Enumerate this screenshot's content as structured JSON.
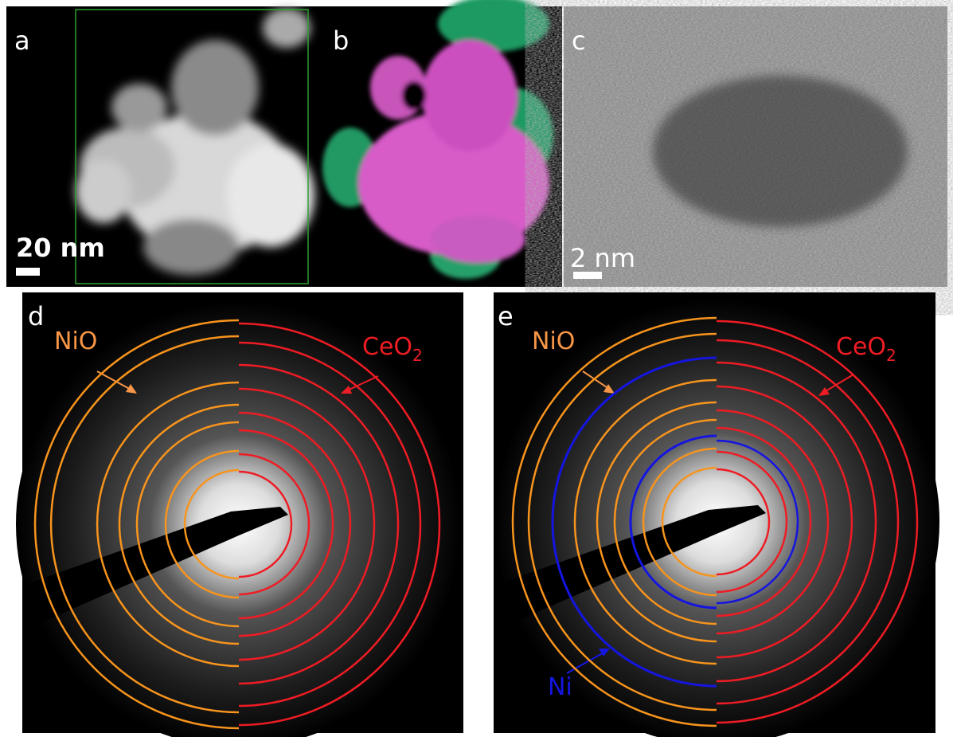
{
  "panels": [
    {
      "label": "a",
      "scale_bar": "20 nm"
    },
    {
      "label": "b"
    },
    {
      "label": "c",
      "scale_bar": "2 nm"
    },
    {
      "label": "d",
      "annotations": {
        "nio": "NiO",
        "ceo2": {
          "base": "CeO",
          "subscript": "2"
        }
      }
    },
    {
      "label": "e",
      "annotations": {
        "nio": "NiO",
        "ceo2": {
          "base": "CeO",
          "subscript": "2"
        },
        "ni": "Ni"
      }
    }
  ]
}
